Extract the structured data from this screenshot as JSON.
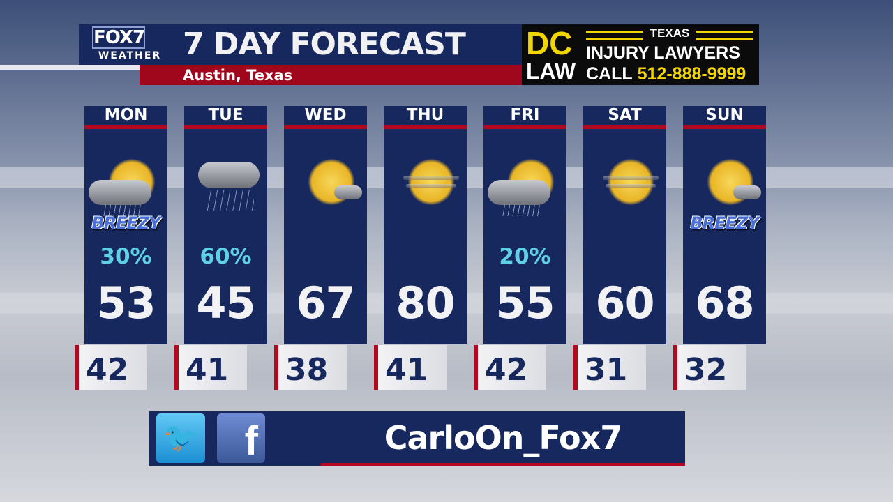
{
  "header": {
    "logo_top": "FOX7",
    "logo_bottom": "WEATHER",
    "title": "7 DAY FORECAST",
    "location": "Austin, Texas"
  },
  "ad": {
    "brand_top": "DC",
    "brand_bottom": "LAW",
    "state": "TEXAS",
    "line1": "INJURY LAWYERS",
    "call_label": "CALL",
    "phone": "512-888-9999"
  },
  "days": [
    {
      "day": "MON",
      "icon": "thunderstorm-partly-sunny",
      "breezy": "BREEZY",
      "pop": "30%",
      "high": "53",
      "low": "42"
    },
    {
      "day": "TUE",
      "icon": "cloudy-rain",
      "breezy": "",
      "pop": "60%",
      "high": "45",
      "low": "41"
    },
    {
      "day": "WED",
      "icon": "mostly-sunny",
      "breezy": "",
      "pop": "",
      "high": "67",
      "low": "38"
    },
    {
      "day": "THU",
      "icon": "hazy-sun",
      "breezy": "",
      "pop": "",
      "high": "80",
      "low": "41"
    },
    {
      "day": "FRI",
      "icon": "partly-sunny-showers",
      "breezy": "",
      "pop": "20%",
      "high": "55",
      "low": "42"
    },
    {
      "day": "SAT",
      "icon": "hazy-sun",
      "breezy": "",
      "pop": "",
      "high": "60",
      "low": "31"
    },
    {
      "day": "SUN",
      "icon": "mostly-sunny",
      "breezy": "BREEZY",
      "pop": "",
      "high": "68",
      "low": "32"
    }
  ],
  "social": {
    "handle": "CarloOn_Fox7",
    "twitter_icon": "twitter-bird-icon",
    "facebook_icon": "facebook-f-icon"
  },
  "colors": {
    "navy": "#17285e",
    "red": "#b3081e",
    "pop": "#5fd0e6",
    "ad_yellow": "#f3d500"
  }
}
